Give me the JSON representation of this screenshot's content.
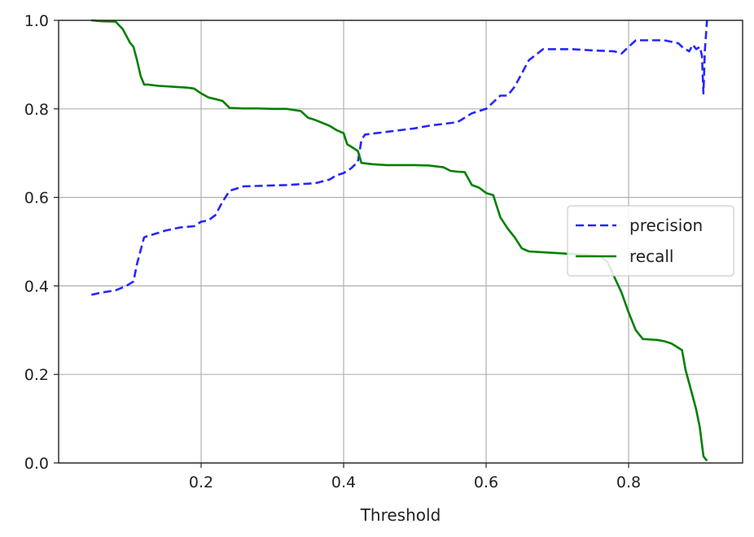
{
  "chart_data": {
    "type": "line",
    "title": "",
    "xlabel": "Threshold",
    "ylabel": "",
    "xlim": [
      0.0,
      0.96
    ],
    "ylim": [
      0.0,
      1.0
    ],
    "xticks": [
      0.2,
      0.4,
      0.6,
      0.8
    ],
    "xtick_labels": [
      "0.2",
      "0.4",
      "0.6",
      "0.8"
    ],
    "yticks": [
      0.0,
      0.2,
      0.4,
      0.6,
      0.8,
      1.0
    ],
    "ytick_labels": [
      "0.0",
      "0.2",
      "0.4",
      "0.6",
      "0.8",
      "1.0"
    ],
    "grid": true,
    "legend_position": "center-right",
    "series": [
      {
        "name": "precision",
        "color": "#0000ff",
        "style": "dashed",
        "x": [
          0.046,
          0.06,
          0.08,
          0.095,
          0.105,
          0.11,
          0.12,
          0.13,
          0.15,
          0.17,
          0.19,
          0.2,
          0.21,
          0.22,
          0.23,
          0.24,
          0.26,
          0.28,
          0.3,
          0.32,
          0.34,
          0.36,
          0.38,
          0.39,
          0.4,
          0.41,
          0.42,
          0.425,
          0.43,
          0.44,
          0.46,
          0.48,
          0.5,
          0.52,
          0.54,
          0.56,
          0.58,
          0.59,
          0.6,
          0.61,
          0.62,
          0.63,
          0.64,
          0.65,
          0.66,
          0.68,
          0.7,
          0.72,
          0.75,
          0.78,
          0.79,
          0.8,
          0.81,
          0.82,
          0.85,
          0.87,
          0.875,
          0.88,
          0.885,
          0.89,
          0.895,
          0.9,
          0.903,
          0.905,
          0.907,
          0.91
        ],
        "values": [
          0.38,
          0.385,
          0.39,
          0.4,
          0.41,
          0.45,
          0.51,
          0.515,
          0.525,
          0.532,
          0.535,
          0.545,
          0.548,
          0.56,
          0.59,
          0.615,
          0.625,
          0.626,
          0.627,
          0.628,
          0.63,
          0.632,
          0.64,
          0.65,
          0.655,
          0.665,
          0.68,
          0.73,
          0.742,
          0.744,
          0.748,
          0.752,
          0.756,
          0.762,
          0.766,
          0.77,
          0.79,
          0.795,
          0.8,
          0.815,
          0.83,
          0.83,
          0.85,
          0.88,
          0.91,
          0.935,
          0.935,
          0.935,
          0.932,
          0.93,
          0.925,
          0.94,
          0.955,
          0.955,
          0.955,
          0.948,
          0.94,
          0.935,
          0.93,
          0.945,
          0.935,
          0.94,
          0.92,
          0.835,
          0.93,
          1.0
        ]
      },
      {
        "name": "recall",
        "color": "#008000",
        "style": "solid",
        "x": [
          0.046,
          0.06,
          0.08,
          0.09,
          0.1,
          0.105,
          0.11,
          0.115,
          0.12,
          0.125,
          0.14,
          0.16,
          0.18,
          0.19,
          0.2,
          0.21,
          0.22,
          0.23,
          0.24,
          0.26,
          0.28,
          0.3,
          0.32,
          0.34,
          0.35,
          0.36,
          0.38,
          0.39,
          0.4,
          0.405,
          0.41,
          0.42,
          0.425,
          0.44,
          0.46,
          0.48,
          0.5,
          0.52,
          0.54,
          0.55,
          0.56,
          0.57,
          0.58,
          0.59,
          0.6,
          0.61,
          0.615,
          0.62,
          0.63,
          0.64,
          0.65,
          0.66,
          0.68,
          0.7,
          0.72,
          0.74,
          0.76,
          0.77,
          0.78,
          0.79,
          0.8,
          0.81,
          0.82,
          0.84,
          0.85,
          0.86,
          0.865,
          0.87,
          0.875,
          0.88,
          0.885,
          0.89,
          0.895,
          0.9,
          0.905,
          0.91
        ],
        "values": [
          1.0,
          0.998,
          0.997,
          0.98,
          0.95,
          0.94,
          0.91,
          0.875,
          0.855,
          0.855,
          0.852,
          0.85,
          0.848,
          0.846,
          0.835,
          0.826,
          0.822,
          0.818,
          0.802,
          0.801,
          0.801,
          0.8,
          0.8,
          0.795,
          0.78,
          0.775,
          0.762,
          0.752,
          0.745,
          0.72,
          0.715,
          0.705,
          0.678,
          0.675,
          0.673,
          0.673,
          0.673,
          0.672,
          0.668,
          0.66,
          0.658,
          0.657,
          0.628,
          0.622,
          0.61,
          0.605,
          0.58,
          0.555,
          0.53,
          0.51,
          0.485,
          0.478,
          0.476,
          0.474,
          0.472,
          0.47,
          0.467,
          0.455,
          0.42,
          0.385,
          0.34,
          0.3,
          0.28,
          0.278,
          0.275,
          0.27,
          0.265,
          0.26,
          0.255,
          0.21,
          0.18,
          0.15,
          0.12,
          0.08,
          0.015,
          0.005
        ]
      }
    ]
  }
}
